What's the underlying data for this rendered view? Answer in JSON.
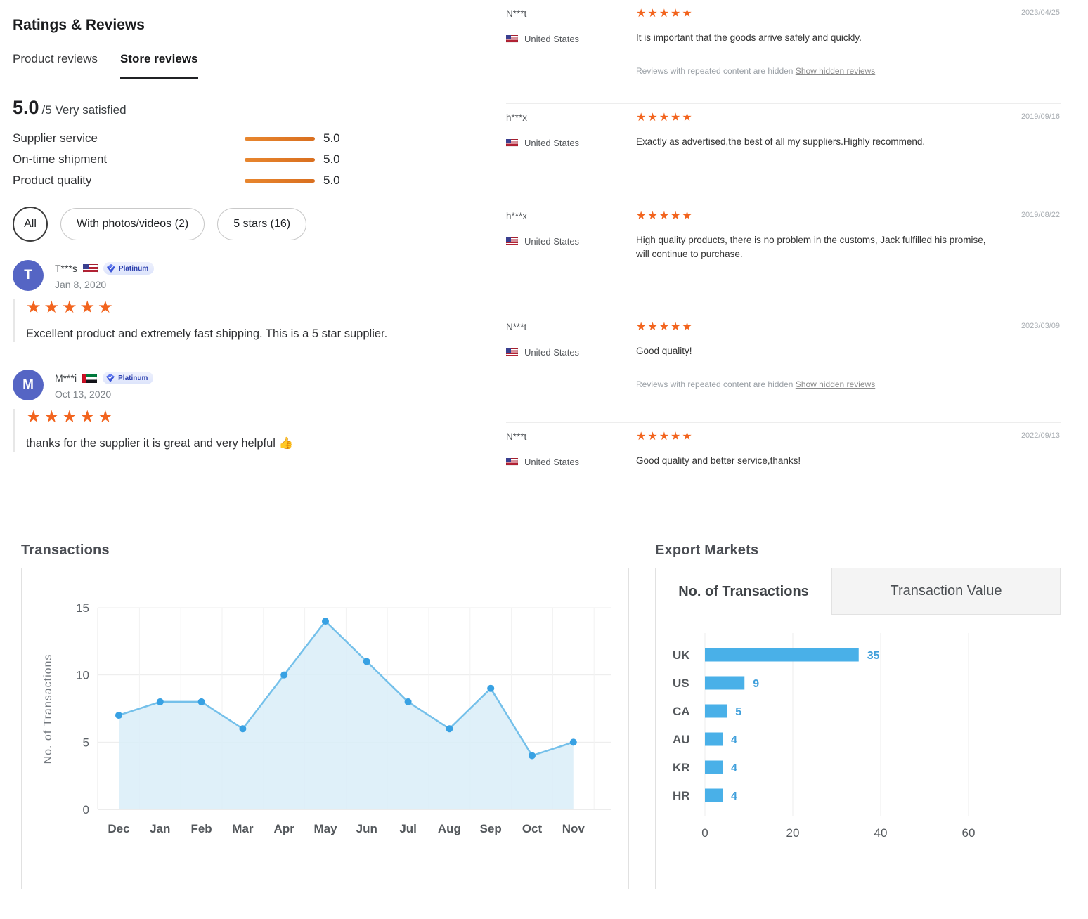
{
  "header": {
    "title": "Ratings & Reviews",
    "tabs": [
      {
        "label": "Product reviews",
        "active": false
      },
      {
        "label": "Store reviews",
        "active": true
      }
    ]
  },
  "summary": {
    "score": "5.0",
    "suffix": "/5",
    "label": "Very satisfied",
    "metrics": [
      {
        "label": "Supplier service",
        "value": "5.0"
      },
      {
        "label": "On-time shipment",
        "value": "5.0"
      },
      {
        "label": "Product quality",
        "value": "5.0"
      }
    ]
  },
  "filters": {
    "all": "All",
    "photos": "With photos/videos (2)",
    "five_star": "5 stars (16)"
  },
  "left_reviews": [
    {
      "initial": "T",
      "name": "T***s",
      "flag": "us",
      "badge": "Platinum",
      "date": "Jan 8, 2020",
      "stars": 5,
      "text": "Excellent product and extremely fast shipping. This is a 5 star supplier."
    },
    {
      "initial": "M",
      "name": "M***i",
      "flag": "ae",
      "badge": "Platinum",
      "date": "Oct 13, 2020",
      "stars": 5,
      "text": "thanks for the supplier it is great and very helpful 👍"
    }
  ],
  "right_reviews": [
    {
      "name": "N***t",
      "country": "United States",
      "date": "2023/04/25",
      "stars": 5,
      "text": "It is important that the goods arrive safely and quickly.",
      "note": "Reviews with repeated content are hidden",
      "note_link": "Show hidden reviews"
    },
    {
      "name": "h***x",
      "country": "United States",
      "date": "2019/09/16",
      "stars": 5,
      "text": "Exactly as advertised,the best of all my suppliers.Highly recommend."
    },
    {
      "name": "h***x",
      "country": "United States",
      "date": "2019/08/22",
      "stars": 5,
      "text": "High quality products, there is no problem in the customs, Jack fulfilled his promise, will continue to purchase."
    },
    {
      "name": "N***t",
      "country": "United States",
      "date": "2023/03/09",
      "stars": 5,
      "text": "Good quality!",
      "note": "Reviews with repeated content are hidden",
      "note_link": "Show hidden reviews"
    },
    {
      "name": "N***t",
      "country": "United States",
      "date": "2022/09/13",
      "stars": 5,
      "text": "Good quality and better service,thanks!"
    }
  ],
  "chart_data": [
    {
      "type": "area",
      "title": "Transactions",
      "xlabel": "",
      "ylabel": "No. of Transactions",
      "categories": [
        "Dec",
        "Jan",
        "Feb",
        "Mar",
        "Apr",
        "May",
        "Jun",
        "Jul",
        "Aug",
        "Sep",
        "Oct",
        "Nov"
      ],
      "values": [
        7,
        8,
        8,
        6,
        10,
        14,
        11,
        8,
        6,
        9,
        4,
        5
      ],
      "ylim": [
        0,
        15
      ],
      "yticks": [
        0,
        5,
        10,
        15
      ],
      "grid": true,
      "legend": "none",
      "line_color": "#74c0ea",
      "point_color": "#38a1e3",
      "fill_color": "#d9edf8"
    },
    {
      "type": "bar",
      "title": "Export Markets",
      "orientation": "horizontal",
      "tabs": [
        {
          "label": "No. of Transactions",
          "active": true
        },
        {
          "label": "Transaction Value",
          "active": false
        }
      ],
      "categories": [
        "UK",
        "US",
        "CA",
        "AU",
        "KR",
        "HR"
      ],
      "values": [
        35,
        9,
        5,
        4,
        4,
        4
      ],
      "xlim": [
        0,
        60
      ],
      "xticks": [
        0,
        20,
        40,
        60
      ],
      "grid": true,
      "bar_color": "#49b0e8",
      "value_color": "#3f9fdb"
    }
  ],
  "colors": {
    "star": "#f2641e",
    "rating_bar": "#e2731f",
    "tab_underline": "#202124",
    "chart_blue": "#49b0e8",
    "link": "#8c8c8c"
  }
}
